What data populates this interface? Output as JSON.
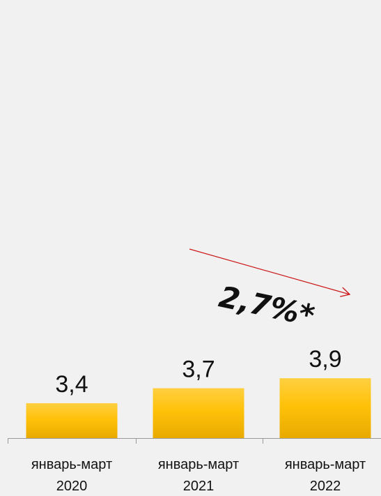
{
  "chart_data": {
    "type": "bar",
    "categories": [
      [
        "январь-март",
        "2020"
      ],
      [
        "январь-март",
        "2021"
      ],
      [
        "январь-март",
        "2022"
      ]
    ],
    "values": [
      3.4,
      3.7,
      3.9
    ],
    "value_labels": [
      "3,4",
      "3,7",
      "3,9"
    ],
    "title": "",
    "xlabel": "",
    "ylabel": "",
    "grid": false,
    "legend": "none",
    "colors": {
      "bar_top": "#ffcf40",
      "bar_mid": "#ffc20a",
      "bar_bottom": "#e8aa00",
      "trend_arrow": "#cc1a1a",
      "text": "#111111",
      "axis": "#9a9a9a",
      "background": "#f1f1f1"
    },
    "annotation": {
      "text": "2,7%*"
    }
  }
}
